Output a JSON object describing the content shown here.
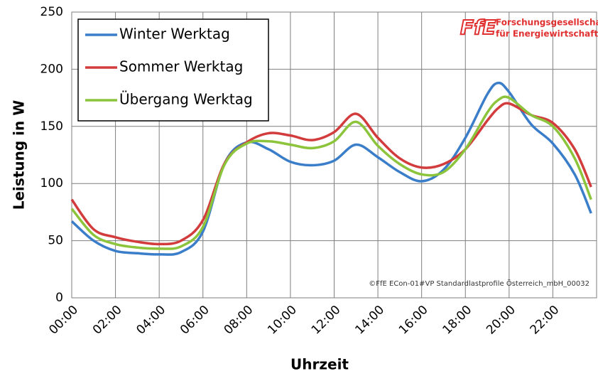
{
  "chart_data": {
    "type": "line",
    "xlabel": "Uhrzeit",
    "ylabel": "Leistung in W",
    "logo": "FfE",
    "logo_text": [
      "Forschungsgesellschaft",
      "für Energiewirtschaft mbH"
    ],
    "note": "©FfE ECon-01#VP Standardlastprofile Österreich_mbH_00032",
    "x": [
      0,
      1,
      2,
      3,
      4,
      5,
      6,
      7,
      8,
      9,
      10,
      11,
      12,
      13,
      14,
      15,
      16,
      17,
      18,
      19,
      19.5,
      20,
      21,
      22,
      23,
      23.75
    ],
    "series": [
      {
        "name": "Winter Werktag",
        "color": "#3a7dc9",
        "values": [
          67,
          50,
          41,
          39,
          38,
          40,
          58,
          118,
          136,
          130,
          119,
          116,
          120,
          134,
          123,
          110,
          102,
          112,
          140,
          178,
          188,
          180,
          152,
          135,
          108,
          74
        ]
      },
      {
        "name": "Sommer Werktag",
        "color": "#d23c3c",
        "values": [
          86,
          60,
          53,
          49,
          47,
          50,
          68,
          118,
          136,
          144,
          142,
          138,
          145,
          161,
          140,
          122,
          114,
          117,
          130,
          155,
          166,
          170,
          160,
          153,
          130,
          97
        ]
      },
      {
        "name": "Übergang Werktag",
        "color": "#8cc43c",
        "values": [
          78,
          55,
          47,
          44,
          43,
          45,
          62,
          117,
          135,
          137,
          134,
          131,
          137,
          154,
          133,
          117,
          108,
          110,
          130,
          162,
          173,
          175,
          160,
          150,
          122,
          86
        ]
      }
    ],
    "xlim": [
      0,
      24
    ],
    "xticks": [
      {
        "value": 0,
        "label": "00:00"
      },
      {
        "value": 2,
        "label": "02:00"
      },
      {
        "value": 4,
        "label": "04:00"
      },
      {
        "value": 6,
        "label": "06:00"
      },
      {
        "value": 8,
        "label": "08:00"
      },
      {
        "value": 10,
        "label": "10:00"
      },
      {
        "value": 12,
        "label": "12:00"
      },
      {
        "value": 14,
        "label": "14:00"
      },
      {
        "value": 16,
        "label": "16:00"
      },
      {
        "value": 18,
        "label": "18:00"
      },
      {
        "value": 20,
        "label": "20:00"
      },
      {
        "value": 22,
        "label": "22:00"
      }
    ],
    "ylim": [
      0,
      250
    ],
    "yticks": [
      0,
      50,
      100,
      150,
      200,
      250
    ],
    "grid": true,
    "legend": "upper left"
  }
}
